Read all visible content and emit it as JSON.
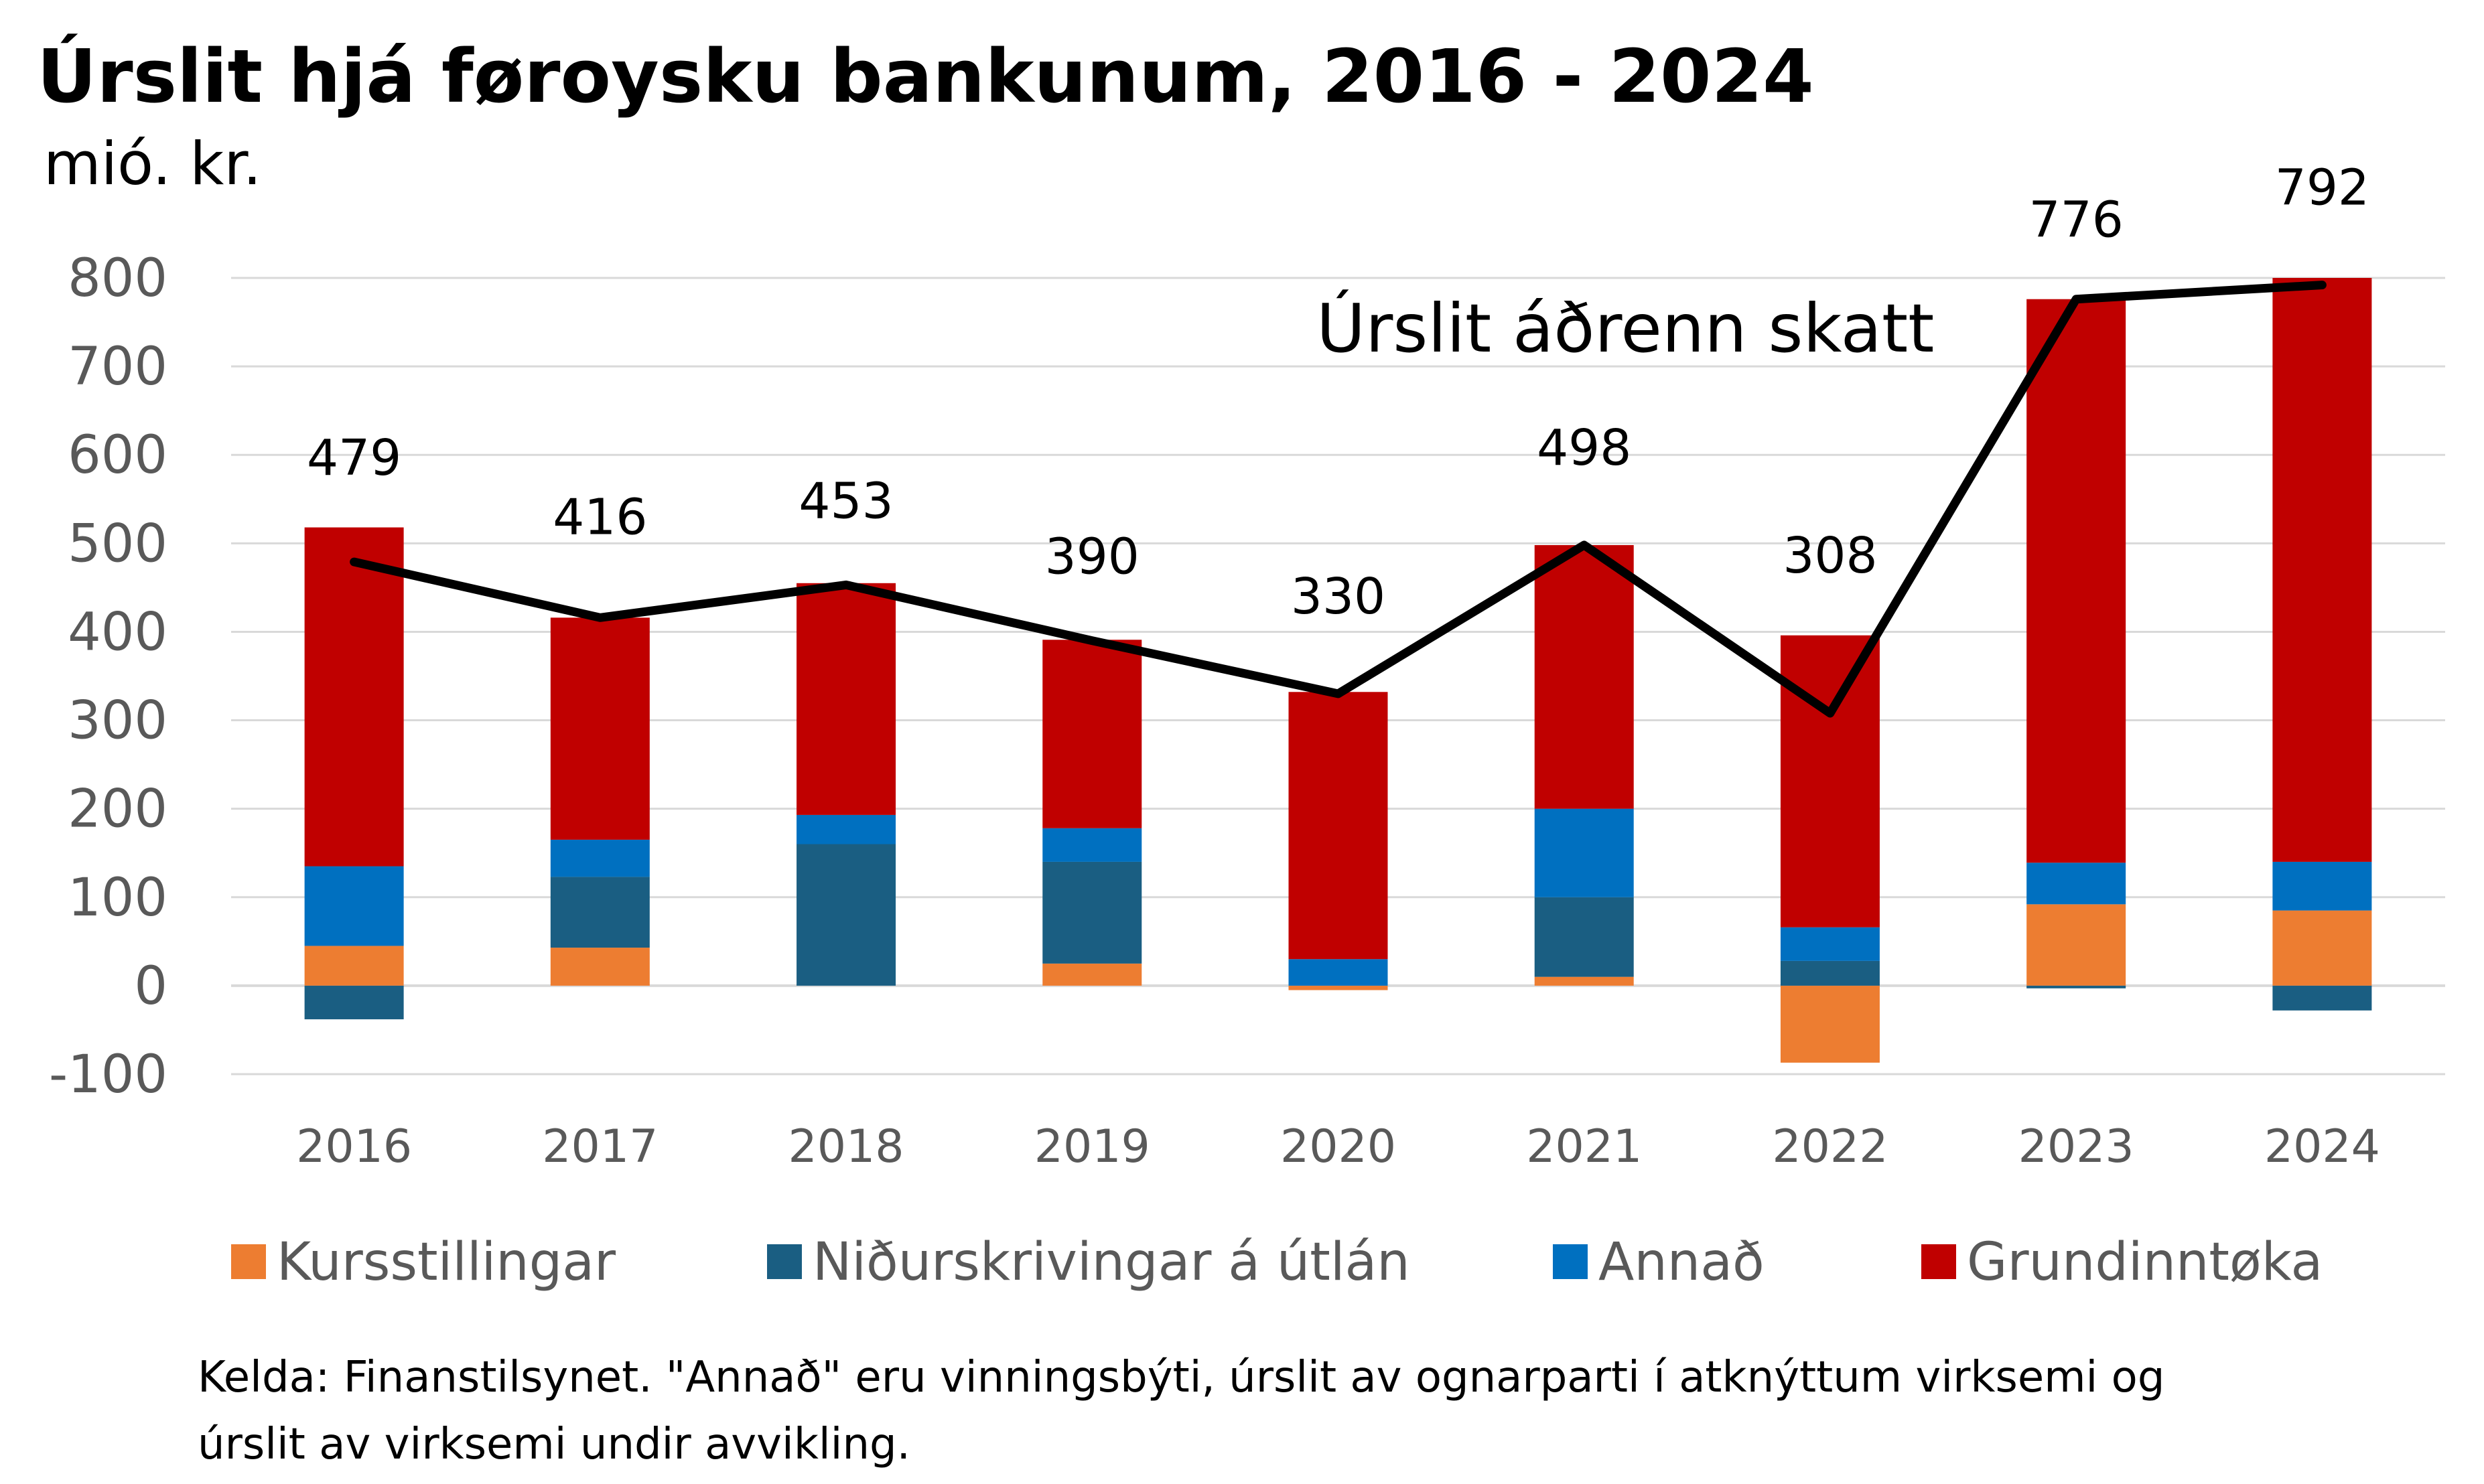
{
  "title": "Úrslit hjá føroysku bankunum, 2016 - 2024",
  "unit": "mió. kr.",
  "note": {
    "line1": "Kelda: Finanstilsynet. \"Annað\" eru vinningsbýti, úrslit av ognarparti í atknýttum virksemi og",
    "line2": "úrslit av virksemi undir avvikling."
  },
  "chart_data": {
    "type": "bar",
    "stacked": true,
    "categories": [
      "2016",
      "2017",
      "2018",
      "2019",
      "2020",
      "2021",
      "2022",
      "2023",
      "2024"
    ],
    "series": [
      {
        "name": "Kursstillingar",
        "color": "#ed7d31",
        "values": [
          45,
          43,
          0,
          25,
          -5,
          10,
          -87,
          92,
          85
        ]
      },
      {
        "name": "Niðurskrivingar á útlán",
        "color": "#1a5e82",
        "values": [
          -38,
          80,
          160,
          115,
          0,
          90,
          28,
          -3,
          -28
        ]
      },
      {
        "name": "Annað",
        "color": "#0070c0",
        "values": [
          90,
          42,
          33,
          38,
          30,
          100,
          38,
          47,
          55
        ]
      },
      {
        "name": "Grundinntøka",
        "color": "#c00000",
        "values": [
          383,
          251,
          262,
          213,
          302,
          298,
          330,
          637,
          660
        ]
      }
    ],
    "line": {
      "name": "Úrslit áðrenn skatt",
      "color": "#000000",
      "values": [
        479,
        416,
        453,
        390,
        330,
        498,
        308,
        776,
        792
      ],
      "labels": [
        "479",
        "416",
        "453",
        "390",
        "330",
        "498",
        "308",
        "776",
        "792"
      ]
    },
    "yticks": [
      "-100",
      "0",
      "100",
      "200",
      "300",
      "400",
      "500",
      "600",
      "700",
      "800"
    ],
    "ylim": [
      -100,
      800
    ],
    "grid": true,
    "legend_position": "bottom"
  }
}
